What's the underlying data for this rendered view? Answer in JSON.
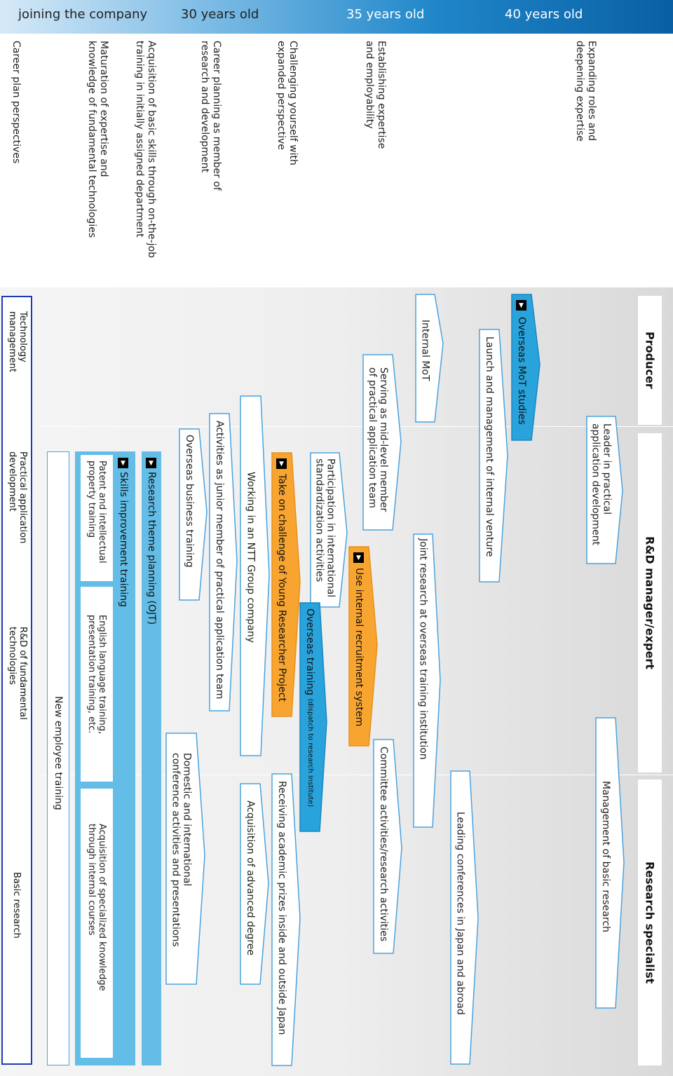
{
  "timeline": {
    "stages": [
      "joining the company",
      "30 years old",
      "35 years old",
      "40 years old"
    ]
  },
  "perspectives": {
    "expanding": "Expanding roles and\ndeepening expertise",
    "establishing": "Establishing expertise\nand employability",
    "challenging": "Challenging yourself with\nexpanded perspective",
    "career_planning": "Career planning as member of\nresearch and development",
    "acquisition": "Acquisition of basic skills through on-the-job\ntraining in initially assigned department",
    "maturation": "Maturation of expertise and\nknowledge of fundamental technologies",
    "header": "Career plan perspectives"
  },
  "tracks": {
    "producer": "Producer",
    "rnd_manager": "R&D manager/expert",
    "research_specialist": "Research specialist"
  },
  "legend": {
    "technology_management": "Technology\nmanagement",
    "practical_application": "Practical application\ndevelopment",
    "rnd_fundamental": "R&D of fundamental\ntechnologies",
    "basic_research": "Basic research"
  },
  "boxes": {
    "overseas_mot": "Overseas MoT studies",
    "internal_mot": "Internal MoT",
    "launch_venture": "Launch and management of internal venture",
    "leader_practical": "Leader in practical\napplication development",
    "serving_midlevel": "Serving as mid-level member\nof practical application team",
    "joint_research": "Joint research at overseas training institution",
    "management_basic": "Management of basic research",
    "leading_conferences": "Leading conferences in Japan and abroad",
    "participation_intl": "Participation in international\nstandardization activities",
    "use_internal": "Use internal recruitment system",
    "committee": "Committee activities/research activities",
    "overseas_training": "Overseas training",
    "overseas_training_sub": "(dispatch to research institute)",
    "take_challenge": "Take on challenge of Young Researcher Project",
    "working_ntt": "Working in an NTT Group company",
    "receiving_prizes": "Receiving academic prizes inside and outside Japan",
    "acquisition_degree": "Acquisition of advanced degree",
    "activities_junior": "Activities as junior member of practical application team",
    "overseas_business": "Overseas business training",
    "domestic_conf": "Domestic and international\nconference activities and presentations",
    "research_theme": "Research theme planning (OJT)",
    "skills_improvement": "Skills improvement training",
    "patent_training": "Patent and intellectual\nproperty training",
    "english_training": "English language training,\npresentation training, etc.",
    "specialized_knowledge": "Acquisition of specialized knowledge\nthrough internal courses",
    "new_employee": "New employee training"
  },
  "colors": {
    "orange": "#f7a530",
    "blue": "#29a3dc",
    "light_blue": "#63bde6",
    "legend_border": "#1f3bb3"
  }
}
